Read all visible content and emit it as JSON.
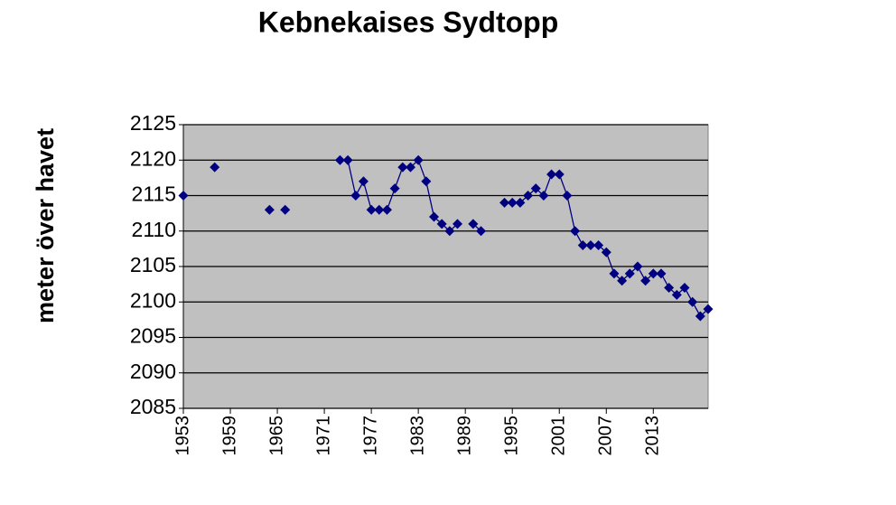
{
  "chart_data": {
    "type": "line",
    "title": "Kebnekaises Sydtopp",
    "y_label": "meter över havet",
    "x": [
      1953,
      1954,
      1955,
      1956,
      1957,
      1958,
      1959,
      1960,
      1961,
      1962,
      1963,
      1964,
      1965,
      1966,
      1967,
      1968,
      1969,
      1970,
      1971,
      1972,
      1973,
      1974,
      1975,
      1976,
      1977,
      1978,
      1979,
      1980,
      1981,
      1982,
      1983,
      1984,
      1985,
      1986,
      1987,
      1988,
      1989,
      1990,
      1991,
      1992,
      1993,
      1994,
      1995,
      1996,
      1997,
      1998,
      1999,
      2000,
      2001,
      2002,
      2003,
      2004,
      2005,
      2006,
      2007,
      2008,
      2009,
      2010,
      2011,
      2012,
      2013,
      2014,
      2015,
      2016,
      2017,
      2018,
      2019,
      2020
    ],
    "series": [
      {
        "color": "#000080",
        "values": [
          2115,
          null,
          null,
          null,
          2119,
          null,
          null,
          null,
          null,
          null,
          null,
          2113,
          null,
          2113,
          null,
          null,
          null,
          null,
          null,
          null,
          2120,
          2120,
          2115,
          2117,
          2113,
          2113,
          2113,
          2116,
          2119,
          2119,
          2120,
          2117,
          2112,
          2111,
          2110,
          2111,
          null,
          2111,
          2110,
          null,
          null,
          2114,
          2114,
          2114,
          2115,
          2116,
          2115,
          2118,
          2118,
          2115,
          2110,
          2108,
          2108,
          2108,
          2107,
          2104,
          2103,
          2104,
          2105,
          2103,
          2104,
          2104,
          2102,
          2101,
          2102,
          2100,
          2098,
          2099
        ]
      }
    ],
    "xlim": [
      1953,
      2020
    ],
    "xticks": [
      1953,
      1959,
      1965,
      1971,
      1977,
      1983,
      1989,
      1995,
      2001,
      2007,
      2013
    ],
    "ylim": [
      2085,
      2125
    ],
    "yticks": [
      2085,
      2090,
      2095,
      2100,
      2105,
      2110,
      2115,
      2120,
      2125
    ],
    "grid": true,
    "plot_background": "#c0c0c0"
  }
}
